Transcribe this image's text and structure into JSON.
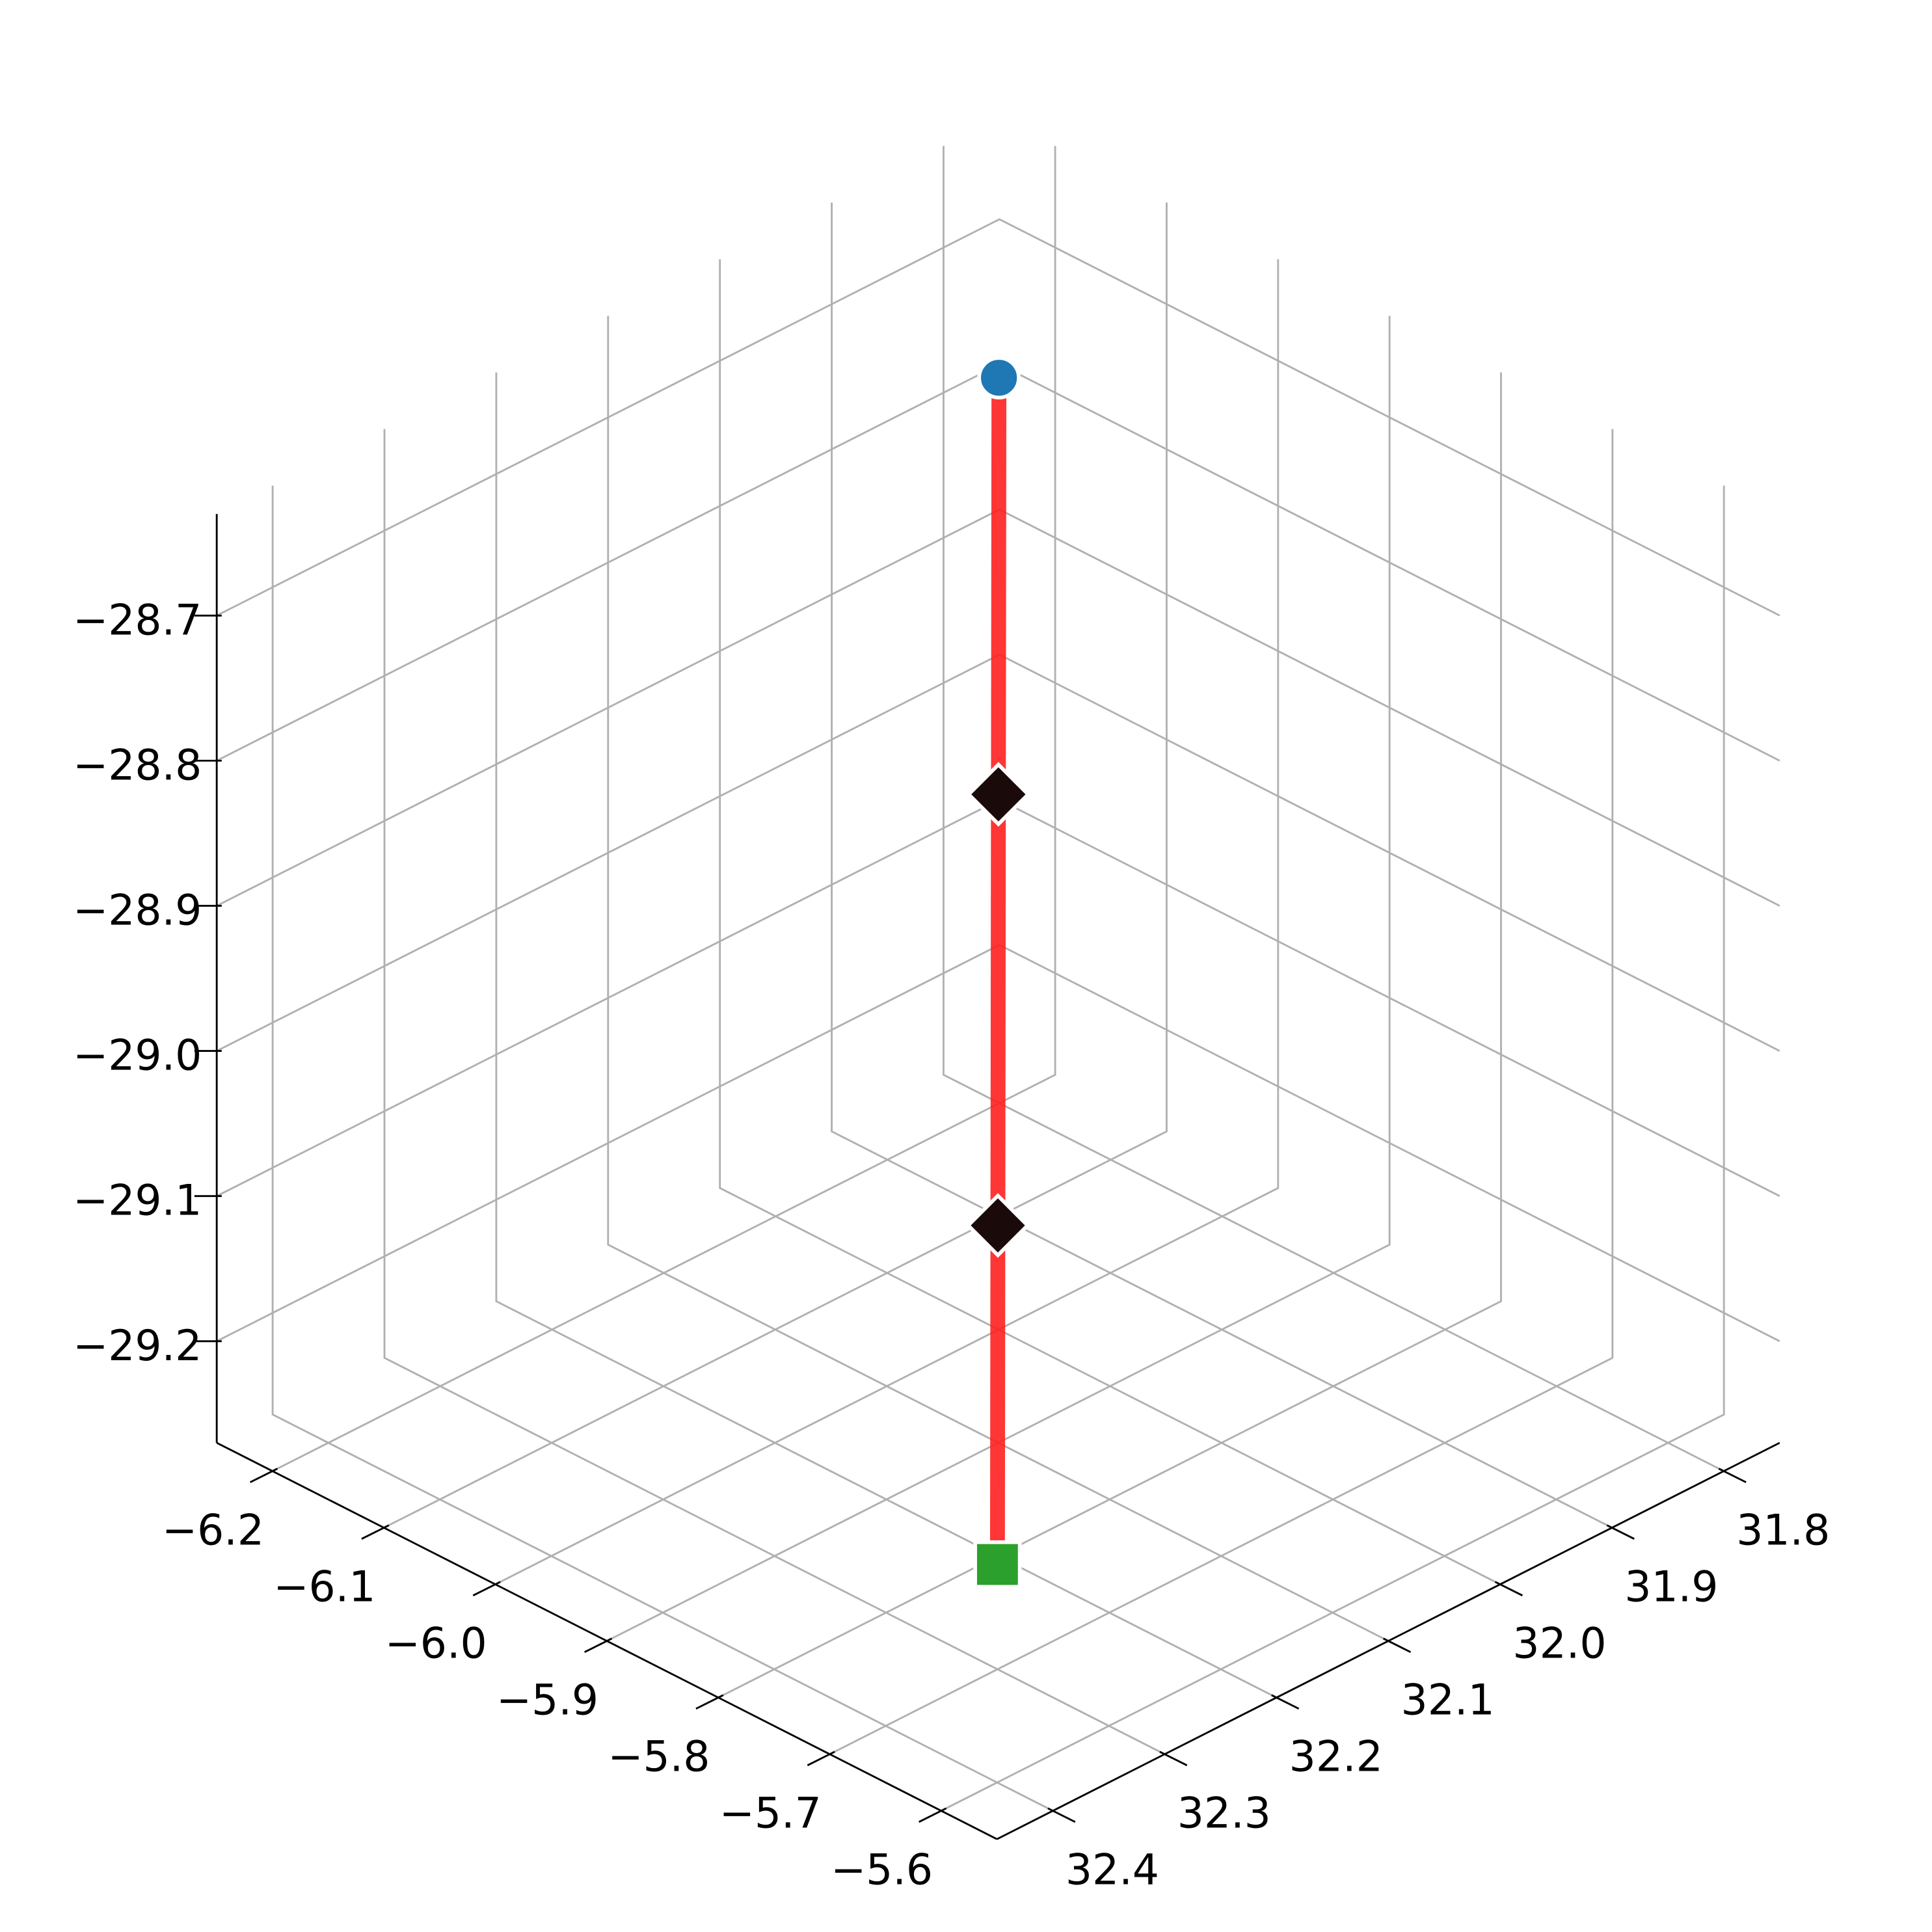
{
  "chart_data": {
    "type": "line3d",
    "xlim": [
      -6.25,
      -5.55
    ],
    "ylim": [
      32.45,
      31.75
    ],
    "zlim": [
      -29.27,
      -28.63
    ],
    "xticks": [
      {
        "value": -6.2,
        "label": "−6.2"
      },
      {
        "value": -6.1,
        "label": "−6.1"
      },
      {
        "value": -6.0,
        "label": "−6.0"
      },
      {
        "value": -5.9,
        "label": "−5.9"
      },
      {
        "value": -5.8,
        "label": "−5.8"
      },
      {
        "value": -5.7,
        "label": "−5.7"
      },
      {
        "value": -5.6,
        "label": "−5.6"
      }
    ],
    "yticks": [
      31.8,
      31.9,
      {
        "value": 32.0,
        "label": "32.0"
      },
      32.1,
      32.2,
      32.3,
      32.4
    ],
    "zticks": [
      {
        "value": -28.7,
        "label": "−28.7"
      },
      {
        "value": -28.8,
        "label": "−28.8"
      },
      {
        "value": -28.9,
        "label": "−28.9"
      },
      {
        "value": -29.0,
        "label": "−29.0"
      },
      {
        "value": -29.1,
        "label": "−29.1"
      },
      {
        "value": -29.2,
        "label": "−29.2"
      }
    ],
    "grid": true,
    "series": [
      {
        "mode": "line",
        "color": "#ff2020",
        "x": [
          -6.11,
          -5.96,
          -5.81,
          -5.69
        ],
        "y": [
          31.89,
          32.04,
          32.19,
          32.31
        ],
        "z": [
          -28.7,
          -28.87,
          -29.05,
          -29.19
        ]
      },
      {
        "mode": "marker",
        "marker": "circle",
        "color": "#1f77b4",
        "x": [
          -6.11
        ],
        "y": [
          31.89
        ],
        "z": [
          -28.7
        ]
      },
      {
        "mode": "marker",
        "marker": "diamond",
        "color": "#1a0a0a",
        "x": [
          -5.96,
          -5.81
        ],
        "y": [
          32.04,
          32.19
        ],
        "z": [
          -28.87,
          -29.05
        ]
      },
      {
        "mode": "marker",
        "marker": "square",
        "color": "#2ca02c",
        "x": [
          -5.69
        ],
        "y": [
          32.31
        ],
        "z": [
          -29.19
        ]
      }
    ]
  }
}
